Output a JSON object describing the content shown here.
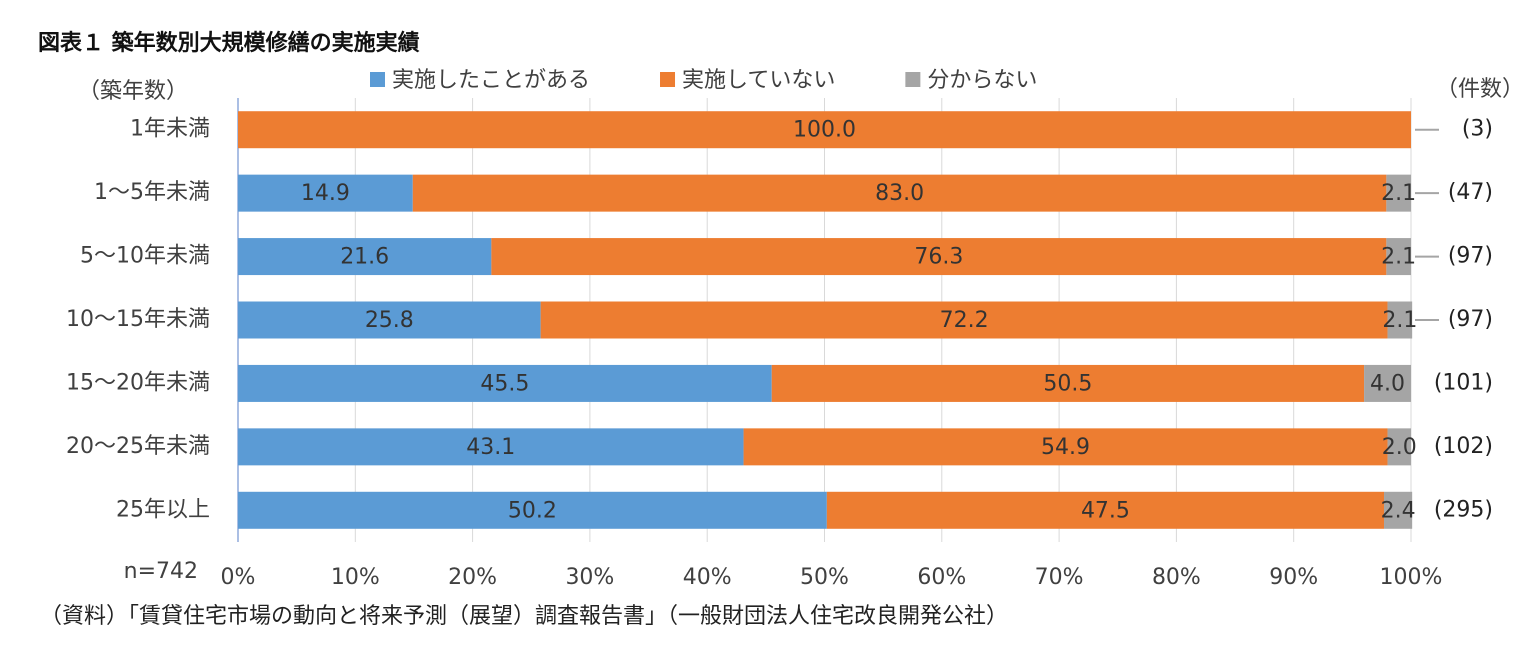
{
  "chart_data": {
    "type": "stacked_barh",
    "title": "図表１ 築年数別大規模修繕の実施実績",
    "y_axis_label": "（築年数）",
    "count_axis_label": "（件数）",
    "note": "n=742",
    "source": "（資料）「賃貸住宅市場の動向と将来予測（展望）調査報告書」（一般財団法人住宅改良開発公社）",
    "categories": [
      "1年未満",
      "1～5年未満",
      "5～10年未満",
      "10～15年未満",
      "15～20年未満",
      "20～25年未満",
      "25年以上"
    ],
    "count_labels": [
      "(3)",
      "(47)",
      "(97)",
      "(97)",
      "(101)",
      "(102)",
      "(295)"
    ],
    "series": [
      {
        "name": "実施したことがある",
        "color": "#5b9bd5",
        "values": [
          0,
          14.9,
          21.6,
          25.8,
          45.5,
          43.1,
          50.2
        ],
        "value_labels": [
          null,
          "14.9",
          "21.6",
          "25.8",
          "45.5",
          "43.1",
          "50.2"
        ]
      },
      {
        "name": "実施していない",
        "color": "#ed7d31",
        "values": [
          100,
          83,
          76.3,
          72.2,
          50.5,
          54.9,
          47.5
        ],
        "value_labels": [
          "100.0",
          "83.0",
          "76.3",
          "72.2",
          "50.5",
          "54.9",
          "47.5"
        ]
      },
      {
        "name": "分からない",
        "color": "#a5a5a5",
        "values": [
          0,
          2.1,
          2.1,
          2.1,
          4,
          2,
          2.4
        ],
        "value_labels": [
          null,
          "2.1",
          "2.1",
          "2.1",
          "4.0",
          "2.0",
          "2.4"
        ]
      }
    ],
    "xlim": [
      0,
      100
    ],
    "xticks": [
      {
        "value": 0,
        "label": "0%"
      },
      {
        "value": 10,
        "label": "10%"
      },
      {
        "value": 20,
        "label": "20%"
      },
      {
        "value": 30,
        "label": "30%"
      },
      {
        "value": 40,
        "label": "40%"
      },
      {
        "value": 50,
        "label": "50%"
      },
      {
        "value": 60,
        "label": "60%"
      },
      {
        "value": 70,
        "label": "70%"
      },
      {
        "value": 80,
        "label": "80%"
      },
      {
        "value": 90,
        "label": "90%"
      },
      {
        "value": 100,
        "label": "100%"
      }
    ],
    "grid": true
  }
}
